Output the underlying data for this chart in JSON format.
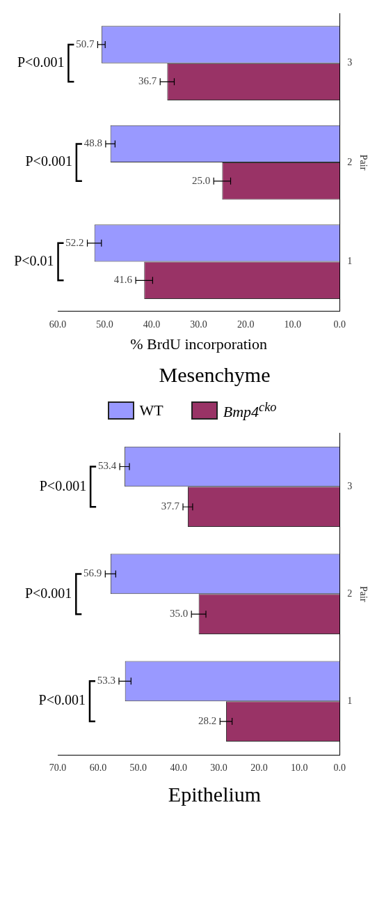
{
  "chart_data": [
    {
      "type": "bar",
      "orientation": "horizontal",
      "title": "Mesenchyme",
      "xlabel": "% BrdU incorporation",
      "ylabel": "Pair",
      "categories": [
        "3",
        "2",
        "1"
      ],
      "series": [
        {
          "name": "WT",
          "color": "#9999ff",
          "values": [
            50.7,
            48.8,
            52.2
          ],
          "errors": [
            0.8,
            1.0,
            1.5
          ]
        },
        {
          "name": "Bmp4$^{cko}$",
          "color": "#993366",
          "values": [
            36.7,
            25.0,
            41.6
          ],
          "errors": [
            1.5,
            1.8,
            1.8
          ],
          "value_labels": [
            "36.7",
            "25.0",
            "41.6"
          ]
        }
      ],
      "xlim": [
        60,
        0
      ],
      "xticks": [
        {
          "value": 0,
          "label": "0.0"
        },
        {
          "value": 10,
          "label": "10.0"
        },
        {
          "value": 20,
          "label": "20.0"
        },
        {
          "value": 30,
          "label": "30.0"
        },
        {
          "value": 40,
          "label": "40.0"
        },
        {
          "value": 50,
          "label": "50.0"
        },
        {
          "value": 60,
          "label": "60.0"
        }
      ],
      "data_labels": true,
      "legend": "bottom",
      "grid": false,
      "annotations": [
        "P<0.001",
        "P<0.001",
        "P<0.01"
      ]
    },
    {
      "type": "bar",
      "orientation": "horizontal",
      "title": "Epithelium",
      "ylabel": "Pair",
      "categories": [
        "3",
        "2",
        "1"
      ],
      "series": [
        {
          "color": "#9999ff",
          "values": [
            53.4,
            56.9,
            53.3
          ],
          "errors": [
            1.2,
            1.3,
            1.5
          ]
        },
        {
          "color": "#993366",
          "values": [
            37.7,
            35.0,
            28.2
          ],
          "errors": [
            1.2,
            1.8,
            1.5
          ],
          "value_labels": [
            "37.7",
            "35.0",
            "28.2"
          ]
        }
      ],
      "xlim": [
        70,
        0
      ],
      "xticks": [
        {
          "value": 0,
          "label": "0.0"
        },
        {
          "value": 10,
          "label": "10.0"
        },
        {
          "value": 20,
          "label": "20.0"
        },
        {
          "value": 30,
          "label": "30.0"
        },
        {
          "value": 40,
          "label": "40.0"
        },
        {
          "value": 50,
          "label": "50.0"
        },
        {
          "value": 60,
          "label": "60.0"
        },
        {
          "value": 70,
          "label": "70.0"
        }
      ],
      "data_labels": true,
      "grid": false,
      "annotations": [
        "P<0.001",
        "P<0.001",
        "P<0.001"
      ]
    }
  ]
}
